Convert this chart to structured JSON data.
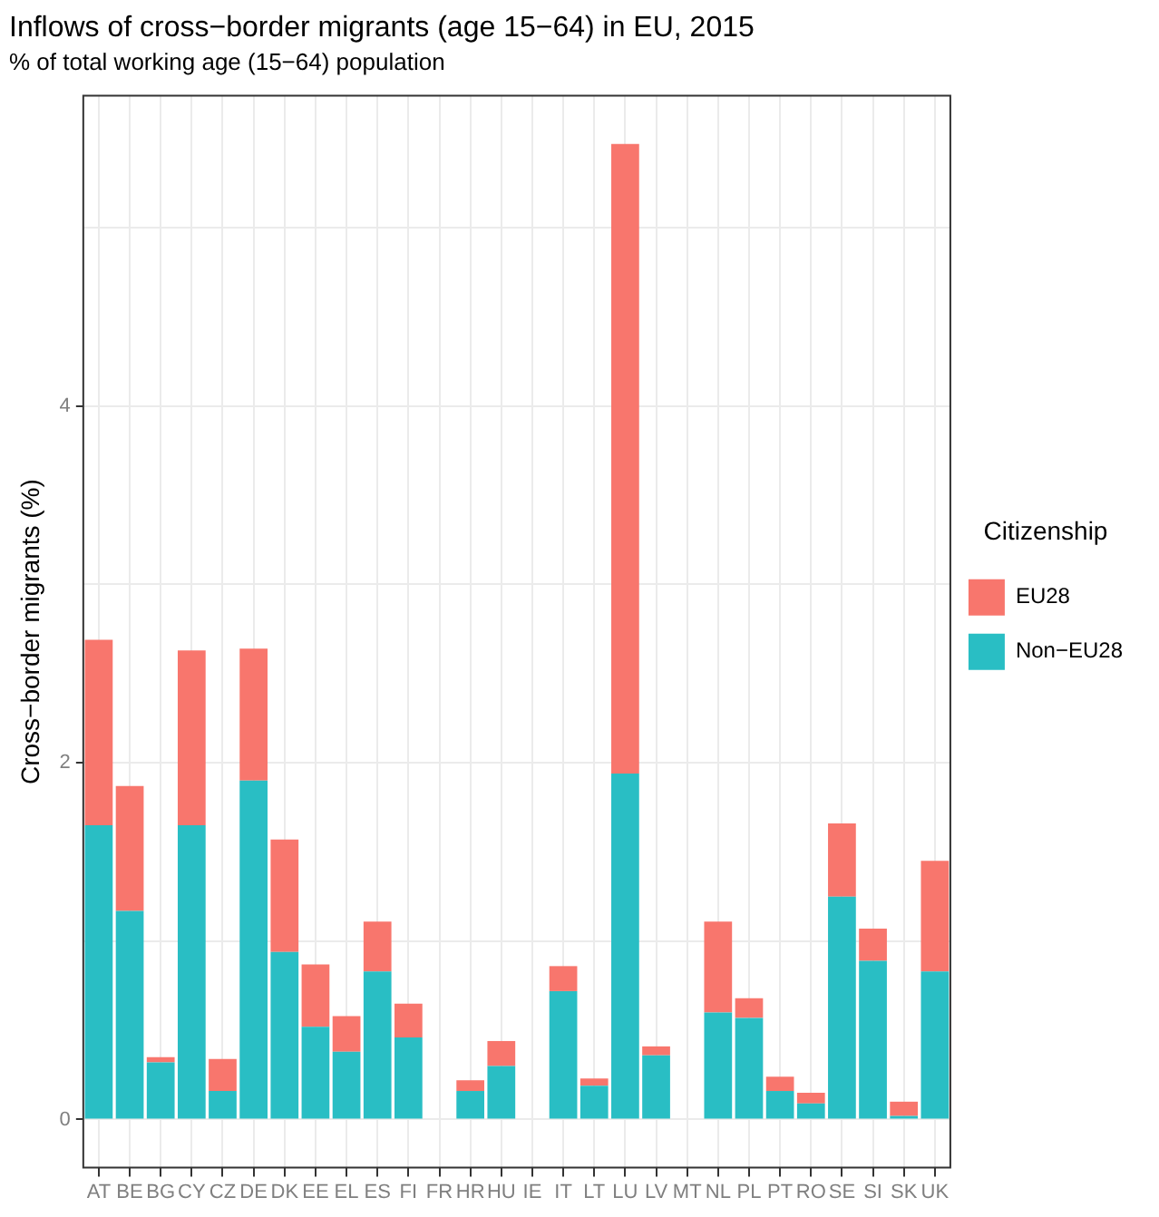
{
  "chart_data": {
    "type": "bar",
    "title": "Inflows of cross−border migrants (age 15−64) in EU, 2015",
    "subtitle": "% of total working age (15−64) population",
    "ylabel": "Cross−border migrants (%)",
    "legend_title": "Citizenship",
    "categories": [
      "AT",
      "BE",
      "BG",
      "CY",
      "CZ",
      "DE",
      "DK",
      "EE",
      "EL",
      "ES",
      "FI",
      "FR",
      "HR",
      "HU",
      "IE",
      "IT",
      "LT",
      "LU",
      "LV",
      "MT",
      "NL",
      "PL",
      "PT",
      "RO",
      "SE",
      "SI",
      "SK",
      "UK"
    ],
    "stacked": true,
    "series": [
      {
        "name": "Non−EU28",
        "color": "#29bec4",
        "values": [
          1.65,
          1.17,
          0.32,
          1.65,
          0.16,
          1.9,
          0.94,
          0.52,
          0.38,
          0.83,
          0.46,
          null,
          0.16,
          0.3,
          null,
          0.72,
          0.19,
          1.94,
          0.36,
          null,
          0.6,
          0.57,
          0.16,
          0.09,
          1.25,
          0.89,
          0.02,
          0.83
        ]
      },
      {
        "name": "EU28",
        "color": "#f8766d",
        "values": [
          1.04,
          0.7,
          0.03,
          0.98,
          0.18,
          0.74,
          0.63,
          0.35,
          0.2,
          0.28,
          0.19,
          null,
          0.06,
          0.14,
          null,
          0.14,
          0.04,
          3.53,
          0.05,
          null,
          0.51,
          0.11,
          0.08,
          0.06,
          0.41,
          0.18,
          0.08,
          0.62
        ]
      }
    ],
    "ylim": [
      -0.27,
      5.74
    ],
    "yticks": [
      0,
      {
        "value": 1,
        "label": null
      },
      2,
      {
        "value": 3,
        "label": null
      },
      4,
      {
        "value": 5,
        "label": null
      }
    ],
    "grid": true,
    "legend": "right"
  }
}
